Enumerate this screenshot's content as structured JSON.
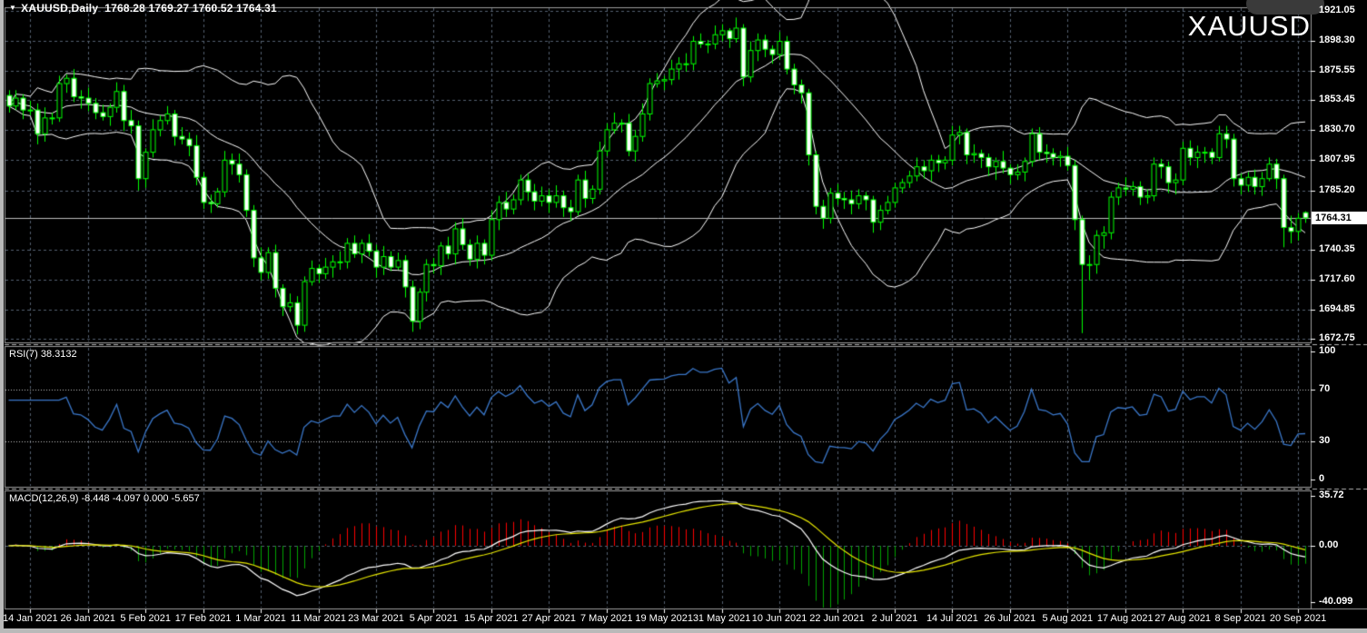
{
  "window": {
    "title": "XAUUSD,Daily",
    "ohlc": "1768.28 1769.27 1760.52 1764.31",
    "watermark": "XAUUSD"
  },
  "main_pane": {
    "price_labels": [
      "1921.05",
      "1898.30",
      "1875.55",
      "1853.45",
      "1830.70",
      "1807.95",
      "1785.20",
      "1740.35",
      "1717.60",
      "1694.85",
      "1672.75"
    ],
    "current_price": "1764.31"
  },
  "rsi_pane": {
    "label": "RSI(7) 38.3132",
    "axis_labels": [
      "100",
      "70",
      "30",
      "0"
    ],
    "levels": [
      70,
      30
    ]
  },
  "macd_pane": {
    "label": "MACD(12,26,9) -8.448 -4.097 0.000 -5.657",
    "axis_labels": [
      "35.72",
      "0.00",
      "-40.099"
    ]
  },
  "date_axis": {
    "labels": [
      "14 Jan 2021",
      "26 Jan 2021",
      "5 Feb 2021",
      "17 Feb 2021",
      "1 Mar 2021",
      "11 Mar 2021",
      "23 Mar 2021",
      "5 Apr 2021",
      "15 Apr 2021",
      "27 Apr 2021",
      "7 May 2021",
      "19 May 2021",
      "31 May 2021",
      "10 Jun 2021",
      "22 Jun 2021",
      "2 Jul 2021",
      "14 Jul 2021",
      "26 Jul 2021",
      "5 Aug 2021",
      "17 Aug 2021",
      "27 Aug 2021",
      "8 Sep 2021",
      "20 Sep 2021"
    ]
  },
  "colors": {
    "background": "#000000",
    "grid": "#556070",
    "frame": "#9e9e9e",
    "separator": "#b0b0b0",
    "candle_outline": "#00FF00",
    "bull_fill": "#000000",
    "bear_fill": "#FFFFFF",
    "bollinger": "#FFFFFF",
    "price_line": "#BEBEBE",
    "rsi_line": "#3A77C9",
    "rsi_levels": "#C8C8C8",
    "macd_main": "#FFFFFF",
    "macd_signal": "#E6E600",
    "hist_positive": "#FF0000",
    "hist_negative": "#00A500",
    "axis_text": "#FFFFFF",
    "badge_bg": "#FFFFFF",
    "badge_text": "#000000"
  },
  "chart_data": {
    "type": "candlestick",
    "symbol": "XAUUSD",
    "timeframe": "Daily",
    "title": "XAUUSD,Daily 1768.28 1769.27 1760.52 1764.31",
    "price_axis_range": [
      1672.75,
      1921.05
    ],
    "rsi_range": [
      0,
      100
    ],
    "macd_range": [
      -40.099,
      35.72
    ],
    "grid": true,
    "first_label_index": 3,
    "label_every": 8,
    "candle_format": "ohlc",
    "candles": [
      [
        1857,
        1861,
        1844,
        1849
      ],
      [
        1849,
        1861,
        1846,
        1855
      ],
      [
        1855,
        1858,
        1839,
        1846
      ],
      [
        1846,
        1853,
        1842,
        1846
      ],
      [
        1846,
        1851,
        1820,
        1828
      ],
      [
        1828,
        1848,
        1822,
        1840
      ],
      [
        1840,
        1844,
        1835,
        1840
      ],
      [
        1840,
        1872,
        1837,
        1866
      ],
      [
        1866,
        1873,
        1859,
        1870
      ],
      [
        1870,
        1877,
        1852,
        1856
      ],
      [
        1856,
        1861,
        1847,
        1855
      ],
      [
        1855,
        1863,
        1845,
        1851
      ],
      [
        1851,
        1855,
        1839,
        1844
      ],
      [
        1844,
        1850,
        1838,
        1841
      ],
      [
        1841,
        1851,
        1834,
        1848
      ],
      [
        1848,
        1867,
        1844,
        1860
      ],
      [
        1860,
        1865,
        1830,
        1838
      ],
      [
        1838,
        1846,
        1828,
        1834
      ],
      [
        1834,
        1838,
        1785,
        1794
      ],
      [
        1794,
        1817,
        1787,
        1814
      ],
      [
        1814,
        1839,
        1810,
        1831
      ],
      [
        1831,
        1842,
        1826,
        1838
      ],
      [
        1838,
        1849,
        1835,
        1843
      ],
      [
        1843,
        1846,
        1819,
        1826
      ],
      [
        1826,
        1833,
        1820,
        1824
      ],
      [
        1824,
        1829,
        1811,
        1819
      ],
      [
        1819,
        1827,
        1789,
        1795
      ],
      [
        1795,
        1799,
        1771,
        1776
      ],
      [
        1776,
        1782,
        1768,
        1775
      ],
      [
        1775,
        1787,
        1772,
        1784
      ],
      [
        1784,
        1815,
        1780,
        1808
      ],
      [
        1808,
        1813,
        1797,
        1805
      ],
      [
        1805,
        1813,
        1791,
        1797
      ],
      [
        1797,
        1801,
        1765,
        1770
      ],
      [
        1770,
        1774,
        1727,
        1734
      ],
      [
        1734,
        1742,
        1717,
        1723
      ],
      [
        1723,
        1742,
        1718,
        1738
      ],
      [
        1738,
        1744,
        1704,
        1711
      ],
      [
        1711,
        1714,
        1690,
        1697
      ],
      [
        1697,
        1707,
        1693,
        1700
      ],
      [
        1700,
        1705,
        1676,
        1683
      ],
      [
        1683,
        1720,
        1678,
        1716
      ],
      [
        1716,
        1732,
        1713,
        1726
      ],
      [
        1726,
        1729,
        1715,
        1722
      ],
      [
        1722,
        1734,
        1718,
        1727
      ],
      [
        1727,
        1736,
        1719,
        1731
      ],
      [
        1731,
        1739,
        1725,
        1731
      ],
      [
        1731,
        1749,
        1726,
        1745
      ],
      [
        1745,
        1751,
        1734,
        1737
      ],
      [
        1737,
        1748,
        1730,
        1745
      ],
      [
        1745,
        1752,
        1735,
        1739
      ],
      [
        1739,
        1744,
        1719,
        1727
      ],
      [
        1727,
        1743,
        1721,
        1735
      ],
      [
        1735,
        1739,
        1724,
        1727
      ],
      [
        1727,
        1738,
        1725,
        1732
      ],
      [
        1732,
        1736,
        1704,
        1712
      ],
      [
        1712,
        1717,
        1678,
        1686
      ],
      [
        1686,
        1711,
        1680,
        1708
      ],
      [
        1708,
        1733,
        1701,
        1729
      ],
      [
        1729,
        1734,
        1722,
        1728
      ],
      [
        1728,
        1746,
        1721,
        1743
      ],
      [
        1743,
        1750,
        1733,
        1737
      ],
      [
        1737,
        1761,
        1729,
        1756
      ],
      [
        1756,
        1764,
        1740,
        1744
      ],
      [
        1744,
        1748,
        1728,
        1733
      ],
      [
        1733,
        1751,
        1726,
        1745
      ],
      [
        1745,
        1748,
        1729,
        1736
      ],
      [
        1736,
        1770,
        1732,
        1763
      ],
      [
        1763,
        1781,
        1755,
        1776
      ],
      [
        1776,
        1784,
        1765,
        1771
      ],
      [
        1771,
        1782,
        1767,
        1778
      ],
      [
        1778,
        1797,
        1774,
        1793
      ],
      [
        1793,
        1798,
        1777,
        1784
      ],
      [
        1784,
        1790,
        1770,
        1777
      ],
      [
        1777,
        1788,
        1773,
        1781
      ],
      [
        1781,
        1786,
        1768,
        1776
      ],
      [
        1776,
        1789,
        1772,
        1781
      ],
      [
        1781,
        1785,
        1765,
        1772
      ],
      [
        1772,
        1778,
        1762,
        1769
      ],
      [
        1769,
        1797,
        1766,
        1793
      ],
      [
        1793,
        1800,
        1772,
        1779
      ],
      [
        1779,
        1789,
        1775,
        1786
      ],
      [
        1786,
        1822,
        1782,
        1815
      ],
      [
        1815,
        1836,
        1811,
        1831
      ],
      [
        1831,
        1844,
        1828,
        1836
      ],
      [
        1836,
        1839,
        1829,
        1836
      ],
      [
        1836,
        1843,
        1811,
        1815
      ],
      [
        1815,
        1831,
        1807,
        1826
      ],
      [
        1826,
        1851,
        1822,
        1843
      ],
      [
        1843,
        1870,
        1838,
        1866
      ],
      [
        1866,
        1874,
        1863,
        1868
      ],
      [
        1868,
        1872,
        1861,
        1869
      ],
      [
        1869,
        1884,
        1865,
        1877
      ],
      [
        1877,
        1886,
        1869,
        1881
      ],
      [
        1881,
        1889,
        1875,
        1881
      ],
      [
        1881,
        1902,
        1876,
        1898
      ],
      [
        1898,
        1904,
        1893,
        1896
      ],
      [
        1896,
        1899,
        1889,
        1896
      ],
      [
        1896,
        1910,
        1892,
        1903
      ],
      [
        1903,
        1911,
        1898,
        1906
      ],
      [
        1906,
        1908,
        1893,
        1900
      ],
      [
        1900,
        1916,
        1897,
        1908
      ],
      [
        1908,
        1911,
        1864,
        1871
      ],
      [
        1871,
        1898,
        1867,
        1891
      ],
      [
        1891,
        1904,
        1883,
        1899
      ],
      [
        1899,
        1903,
        1886,
        1892
      ],
      [
        1892,
        1895,
        1881,
        1888
      ],
      [
        1888,
        1905,
        1884,
        1898
      ],
      [
        1898,
        1902,
        1873,
        1877
      ],
      [
        1877,
        1881,
        1858,
        1865
      ],
      [
        1865,
        1869,
        1851,
        1859
      ],
      [
        1859,
        1862,
        1804,
        1812
      ],
      [
        1812,
        1815,
        1767,
        1773
      ],
      [
        1773,
        1778,
        1756,
        1764
      ],
      [
        1764,
        1787,
        1760,
        1783
      ],
      [
        1783,
        1790,
        1774,
        1779
      ],
      [
        1779,
        1784,
        1771,
        1778
      ],
      [
        1778,
        1785,
        1767,
        1775
      ],
      [
        1775,
        1786,
        1771,
        1781
      ],
      [
        1781,
        1784,
        1770,
        1778
      ],
      [
        1778,
        1781,
        1753,
        1761
      ],
      [
        1761,
        1774,
        1755,
        1770
      ],
      [
        1770,
        1781,
        1767,
        1776
      ],
      [
        1776,
        1791,
        1772,
        1787
      ],
      [
        1787,
        1794,
        1783,
        1791
      ],
      [
        1791,
        1800,
        1787,
        1796
      ],
      [
        1796,
        1810,
        1792,
        1803
      ],
      [
        1803,
        1808,
        1794,
        1800
      ],
      [
        1800,
        1812,
        1792,
        1808
      ],
      [
        1808,
        1812,
        1799,
        1806
      ],
      [
        1806,
        1811,
        1801,
        1808
      ],
      [
        1808,
        1834,
        1804,
        1827
      ],
      [
        1827,
        1834,
        1820,
        1829
      ],
      [
        1829,
        1832,
        1805,
        1812
      ],
      [
        1812,
        1820,
        1806,
        1813
      ],
      [
        1813,
        1816,
        1802,
        1810
      ],
      [
        1810,
        1813,
        1796,
        1803
      ],
      [
        1803,
        1810,
        1793,
        1807
      ],
      [
        1807,
        1815,
        1798,
        1802
      ],
      [
        1802,
        1805,
        1790,
        1797
      ],
      [
        1797,
        1805,
        1793,
        1799
      ],
      [
        1799,
        1810,
        1792,
        1807
      ],
      [
        1807,
        1832,
        1803,
        1828
      ],
      [
        1828,
        1833,
        1808,
        1814
      ],
      [
        1814,
        1820,
        1806,
        1813
      ],
      [
        1813,
        1817,
        1804,
        1810
      ],
      [
        1810,
        1815,
        1803,
        1811
      ],
      [
        1811,
        1818,
        1800,
        1804
      ],
      [
        1804,
        1808,
        1755,
        1763
      ],
      [
        1763,
        1766,
        1677,
        1729
      ],
      [
        1729,
        1736,
        1717,
        1729
      ],
      [
        1729,
        1755,
        1722,
        1751
      ],
      [
        1751,
        1758,
        1741,
        1753
      ],
      [
        1753,
        1784,
        1748,
        1780
      ],
      [
        1780,
        1791,
        1774,
        1787
      ],
      [
        1787,
        1795,
        1781,
        1786
      ],
      [
        1786,
        1792,
        1781,
        1788
      ],
      [
        1788,
        1792,
        1774,
        1780
      ],
      [
        1780,
        1786,
        1775,
        1781
      ],
      [
        1781,
        1810,
        1777,
        1805
      ],
      [
        1805,
        1809,
        1794,
        1803
      ],
      [
        1803,
        1807,
        1783,
        1791
      ],
      [
        1791,
        1798,
        1782,
        1793
      ],
      [
        1793,
        1822,
        1789,
        1817
      ],
      [
        1817,
        1823,
        1804,
        1810
      ],
      [
        1810,
        1819,
        1802,
        1814
      ],
      [
        1814,
        1818,
        1806,
        1814
      ],
      [
        1814,
        1817,
        1805,
        1810
      ],
      [
        1810,
        1834,
        1807,
        1828
      ],
      [
        1828,
        1834,
        1817,
        1824
      ],
      [
        1824,
        1828,
        1788,
        1794
      ],
      [
        1794,
        1798,
        1782,
        1789
      ],
      [
        1789,
        1799,
        1784,
        1795
      ],
      [
        1795,
        1801,
        1782,
        1788
      ],
      [
        1788,
        1799,
        1781,
        1794
      ],
      [
        1794,
        1810,
        1792,
        1805
      ],
      [
        1805,
        1809,
        1786,
        1794
      ],
      [
        1794,
        1797,
        1742,
        1757
      ],
      [
        1757,
        1766,
        1745,
        1754
      ],
      [
        1754,
        1768,
        1747,
        1764
      ],
      [
        1768.28,
        1769.27,
        1760.52,
        1764.31
      ]
    ],
    "indicators": {
      "bollinger": {
        "period": 20,
        "deviation": 2
      },
      "rsi": {
        "period": 7,
        "current_value": 38.3132
      },
      "macd": {
        "fast": 12,
        "slow": 26,
        "signal": 9,
        "display_values": [
          -8.448,
          -4.097,
          0.0,
          -5.657
        ]
      }
    }
  }
}
